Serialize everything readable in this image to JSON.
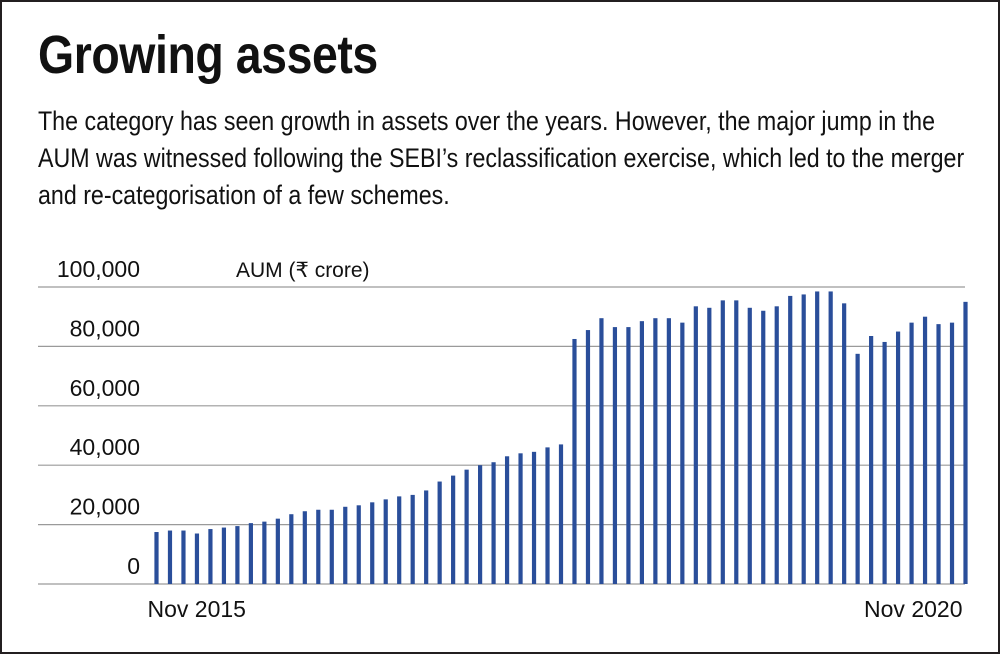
{
  "title": "Growing assets",
  "subtitle": "The category has seen growth in assets over the years. However, the major jump in the AUM was witnessed following the SEBI’s reclassification exercise, which led to the merger and re-categorisation of a few schemes.",
  "colors": {
    "bar": "#2a4e9a",
    "grid": "#9a9a9a",
    "text": "#111111"
  },
  "chart_data": {
    "type": "bar",
    "ylabel": "AUM (₹ crore)",
    "ylim": [
      0,
      100000
    ],
    "y_ticks": [
      {
        "value": 0,
        "label": "0"
      },
      {
        "value": 20000,
        "label": "20,000"
      },
      {
        "value": 40000,
        "label": "40,000"
      },
      {
        "value": 60000,
        "label": "60,000"
      },
      {
        "value": 80000,
        "label": "80,000"
      },
      {
        "value": 100000,
        "label": "100,000"
      }
    ],
    "x_labels": [
      {
        "index": 0,
        "label": "Nov 2015"
      },
      {
        "index": 60,
        "label": "Nov 2020"
      }
    ],
    "series": [
      {
        "name": "AUM",
        "values": [
          17500,
          18000,
          18000,
          17000,
          18500,
          19000,
          19500,
          20500,
          21000,
          22000,
          23500,
          24500,
          25000,
          25000,
          26000,
          26500,
          27500,
          28500,
          29500,
          30000,
          31500,
          34500,
          36500,
          38500,
          40000,
          41000,
          43000,
          44000,
          44500,
          46000,
          47000,
          82500,
          85500,
          89500,
          86500,
          86500,
          88500,
          89500,
          89500,
          88000,
          93500,
          93000,
          95500,
          95500,
          93000,
          92000,
          93500,
          97000,
          97500,
          98500,
          98500,
          94500,
          77500,
          83500,
          81500,
          85000,
          88000,
          90000,
          87500,
          88000,
          95000
        ]
      }
    ]
  }
}
